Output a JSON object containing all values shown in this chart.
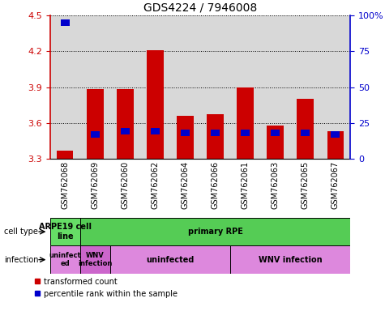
{
  "title": "GDS4224 / 7946008",
  "samples": [
    "GSM762068",
    "GSM762069",
    "GSM762060",
    "GSM762062",
    "GSM762064",
    "GSM762066",
    "GSM762061",
    "GSM762063",
    "GSM762065",
    "GSM762067"
  ],
  "transformed_counts": [
    3.37,
    3.88,
    3.88,
    4.21,
    3.66,
    3.67,
    3.9,
    3.58,
    3.8,
    3.53
  ],
  "percentile_ranks": [
    95,
    17,
    19,
    19,
    18,
    18,
    18,
    18,
    18,
    17
  ],
  "ylim": [
    3.3,
    4.5
  ],
  "yticks_left": [
    3.3,
    3.6,
    3.9,
    4.2,
    4.5
  ],
  "yticks_right": [
    0,
    25,
    50,
    75,
    100
  ],
  "bar_color": "#cc0000",
  "percentile_color": "#0000cc",
  "bar_bottom": 3.3,
  "cell_type_spans": [
    {
      "label": "ARPE19 cell\nline",
      "start": 0,
      "end": 0,
      "color": "#66dd66"
    },
    {
      "label": "primary RPE",
      "start": 1,
      "end": 9,
      "color": "#55cc55"
    }
  ],
  "infection_spans": [
    {
      "label": "uninfect\ned",
      "start": 0,
      "end": 0,
      "color": "#dd88dd"
    },
    {
      "label": "WNV\ninfection",
      "start": 1,
      "end": 1,
      "color": "#cc66cc"
    },
    {
      "label": "uninfected",
      "start": 2,
      "end": 5,
      "color": "#dd88dd"
    },
    {
      "label": "WNV infection",
      "start": 6,
      "end": 9,
      "color": "#dd88dd"
    }
  ],
  "left_axis_color": "#cc0000",
  "right_axis_color": "#0000cc",
  "col_bg_color": "#d8d8d8",
  "fig_width": 4.75,
  "fig_height": 3.84,
  "dpi": 100
}
